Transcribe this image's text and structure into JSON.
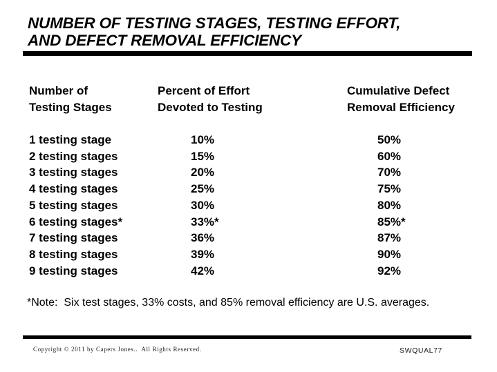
{
  "slide": {
    "title_line1": "NUMBER OF TESTING STAGES, TESTING EFFORT,",
    "title_line2": "AND DEFECT REMOVAL EFFICIENCY",
    "note": "*Note:  Six test stages, 33% costs, and 85% removal efficiency are U.S. averages.",
    "footer": {
      "copyright": "Copyright © 2011 by Capers Jones..  All Rights Reserved.",
      "slide_id": "SWQUAL77"
    }
  },
  "table": {
    "headers": [
      {
        "line1": "Number of",
        "line2": "Testing Stages"
      },
      {
        "line1": "Percent of Effort",
        "line2": "Devoted to Testing"
      },
      {
        "line1": "Cumulative Defect",
        "line2": "Removal Efficiency"
      }
    ],
    "rows": [
      {
        "stages": "1 testing stage",
        "effort": "10%",
        "removal": "50%"
      },
      {
        "stages": "2 testing stages",
        "effort": "15%",
        "removal": "60%"
      },
      {
        "stages": "3 testing stages",
        "effort": "20%",
        "removal": "70%"
      },
      {
        "stages": "4 testing stages",
        "effort": "25%",
        "removal": "75%"
      },
      {
        "stages": "5 testing stages",
        "effort": "30%",
        "removal": "80%"
      },
      {
        "stages": "6 testing stages*",
        "effort": "33%*",
        "removal": "85%*"
      },
      {
        "stages": "7 testing stages",
        "effort": "36%",
        "removal": "87%"
      },
      {
        "stages": "8 testing stages",
        "effort": "39%",
        "removal": "90%"
      },
      {
        "stages": "9 testing stages",
        "effort": "42%",
        "removal": "92%"
      }
    ]
  },
  "chart_data": {
    "type": "table",
    "title": "Number of Testing Stages, Testing Effort, and Defect Removal Efficiency",
    "columns": [
      "Number of Testing Stages",
      "Percent of Effort Devoted to Testing",
      "Cumulative Defect Removal Efficiency"
    ],
    "testing_stages": [
      1,
      2,
      3,
      4,
      5,
      6,
      7,
      8,
      9
    ],
    "percent_effort_devoted_to_testing": [
      "10%",
      "15%",
      "20%",
      "25%",
      "30%",
      "33%*",
      "36%",
      "39%",
      "42%"
    ],
    "cumulative_defect_removal_efficiency": [
      "50%",
      "60%",
      "70%",
      "75%",
      "80%",
      "85%*",
      "87%",
      "90%",
      "92%"
    ],
    "annotation": "*Note:  Six test stages, 33% costs, and 85% removal efficiency are U.S. averages."
  },
  "colors": {
    "background": "#ffffff",
    "text": "#000000",
    "rule": "#000000"
  }
}
